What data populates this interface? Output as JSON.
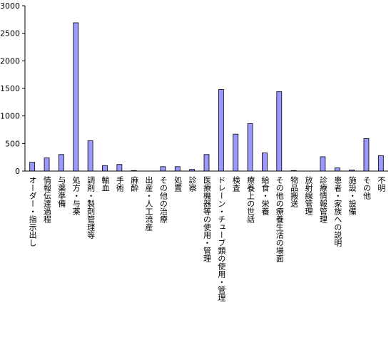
{
  "chart_data": {
    "type": "bar",
    "title": "",
    "xlabel": "",
    "ylabel": "",
    "ylim": [
      0,
      3000
    ],
    "yticks": [
      0,
      500,
      1000,
      1500,
      2000,
      2500,
      3000
    ],
    "grid": false,
    "legend": "none",
    "bar_color": "#9999ff",
    "categories": [
      "オーダー・指示出し",
      "情報伝達過程",
      "与薬準備",
      "処方・与薬",
      "調剤・製剤管理等",
      "輸血",
      "手術",
      "麻酔",
      "出産・人工流産",
      "その他の治療",
      "処置",
      "診察",
      "医療機器等の使用・管理",
      "ドレーン・チューブ類の使用・管理",
      "検査",
      "療養上の世話",
      "給食・栄養",
      "その他の療養生活の場面",
      "物品搬送",
      "放射線管理",
      "診療情報管理",
      "患者・家族への説明",
      "施設・設備",
      "その他",
      "不明"
    ],
    "values": [
      160,
      240,
      300,
      2690,
      550,
      100,
      120,
      10,
      0,
      80,
      80,
      30,
      300,
      1480,
      670,
      860,
      330,
      1440,
      10,
      0,
      260,
      60,
      20,
      590,
      280
    ]
  }
}
